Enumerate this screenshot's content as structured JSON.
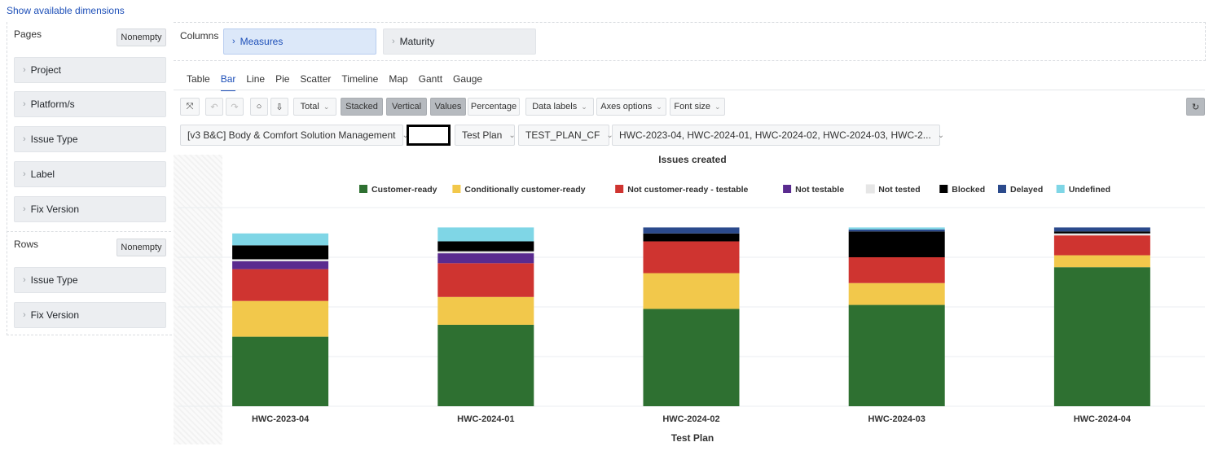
{
  "top_link": "Show available dimensions",
  "pages": {
    "label": "Pages",
    "nonempty": "Nonempty",
    "items": [
      "Project",
      "Platform/s",
      "Issue Type",
      "Label",
      "Fix Version"
    ]
  },
  "rows": {
    "label": "Rows",
    "nonempty": "Nonempty",
    "items": [
      "Issue Type",
      "Fix Version"
    ]
  },
  "columns": {
    "label": "Columns",
    "items": [
      "Measures",
      "Maturity"
    ]
  },
  "tabs": [
    "Table",
    "Bar",
    "Line",
    "Pie",
    "Scatter",
    "Timeline",
    "Map",
    "Gantt",
    "Gauge"
  ],
  "selected_tab": "Bar",
  "toolbar": {
    "total": "Total",
    "stacked": "Stacked",
    "vertical": "Vertical",
    "values": "Values",
    "percentage": "Percentage",
    "data_labels": "Data labels",
    "axes_options": "Axes options",
    "font_size": "Font size"
  },
  "filters": {
    "project": "[v3 B&C] Body & Comfort Solution Management",
    "test_plan": "Test Plan",
    "test_plan_cf": "TEST_PLAN_CF",
    "versions": "HWC-2023-04, HWC-2024-01, HWC-2024-02, HWC-2024-03, HWC-2..."
  },
  "colors": {
    "accent": "#1d4fb8"
  },
  "chart_data": {
    "type": "bar",
    "stacked": true,
    "title": "Issues created",
    "xlabel": "Test Plan",
    "ylabel": "",
    "grid": true,
    "legend_position": "top",
    "ylim": [
      0,
      100
    ],
    "categories": [
      "HWC-2023-04",
      "HWC-2024-01",
      "HWC-2024-02",
      "HWC-2024-03",
      "HWC-2024-04"
    ],
    "series": [
      {
        "name": "Customer-ready",
        "color": "#2e7031",
        "values": [
          35,
          41,
          49,
          51,
          70
        ]
      },
      {
        "name": "Conditionally customer-ready",
        "color": "#f2c84b",
        "values": [
          18,
          14,
          18,
          11,
          6
        ]
      },
      {
        "name": "Not customer-ready - testable",
        "color": "#cf3430",
        "values": [
          16,
          17,
          16,
          13,
          10
        ]
      },
      {
        "name": "Not testable",
        "color": "#5a2b8f",
        "values": [
          4,
          5,
          0,
          0,
          0
        ]
      },
      {
        "name": "Not tested",
        "color": "#e6e6e6",
        "values": [
          1,
          1,
          0,
          0,
          1
        ]
      },
      {
        "name": "Blocked",
        "color": "#000000",
        "values": [
          7,
          5,
          4,
          13,
          1
        ]
      },
      {
        "name": "Delayed",
        "color": "#2b4a8c",
        "values": [
          0,
          0,
          3,
          1,
          2
        ]
      },
      {
        "name": "Undefined",
        "color": "#7fd6e6",
        "values": [
          6,
          7,
          0,
          1,
          0
        ]
      }
    ]
  }
}
